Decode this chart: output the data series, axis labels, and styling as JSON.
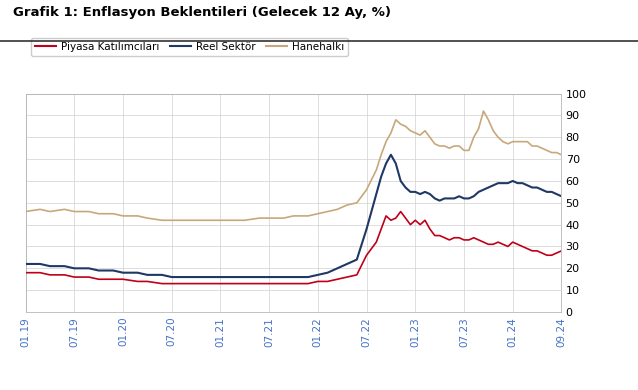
{
  "title": "Grafik 1: Enflasyon Beklentileri (Gelecek 12 Ay, %)",
  "legend_labels": [
    "Piyasa Katılımcıları",
    "Reel Sektör",
    "Hanehalkı"
  ],
  "line_colors": [
    "#c0001a",
    "#1f3864",
    "#c8a87a"
  ],
  "ylim": [
    0,
    100
  ],
  "yticks": [
    0,
    10,
    20,
    30,
    40,
    50,
    60,
    70,
    80,
    90,
    100
  ],
  "xtick_labels": [
    "01.19",
    "07.19",
    "01.20",
    "07.20",
    "01.21",
    "07.21",
    "01.22",
    "07.22",
    "01.23",
    "07.23",
    "01.24",
    "09.24"
  ],
  "piyasa_x": [
    0,
    0.3,
    0.5,
    0.8,
    1,
    1.3,
    1.5,
    1.8,
    2,
    2.3,
    2.5,
    2.8,
    3,
    3.3,
    3.5,
    3.8,
    4,
    4.3,
    4.5,
    4.8,
    5,
    5.3,
    5.5,
    5.8,
    6,
    6.2,
    6.4,
    6.6,
    6.8,
    7,
    7.2,
    7.3,
    7.4,
    7.5,
    7.6,
    7.7,
    7.8,
    7.9,
    8,
    8.1,
    8.2,
    8.3,
    8.4,
    8.5,
    8.6,
    8.7,
    8.8,
    8.9,
    9,
    9.1,
    9.2,
    9.3,
    9.4,
    9.5,
    9.6,
    9.7,
    9.8,
    9.9,
    10,
    10.1,
    10.2,
    10.3,
    10.4,
    10.5,
    10.6,
    10.7,
    10.8,
    10.9,
    11
  ],
  "piyasa_y": [
    18,
    18,
    17,
    17,
    16,
    16,
    15,
    15,
    15,
    14,
    14,
    13,
    13,
    13,
    13,
    13,
    13,
    13,
    13,
    13,
    13,
    13,
    13,
    13,
    14,
    14,
    15,
    16,
    17,
    26,
    32,
    38,
    44,
    42,
    43,
    46,
    43,
    40,
    42,
    40,
    42,
    38,
    35,
    35,
    34,
    33,
    34,
    34,
    33,
    33,
    34,
    33,
    32,
    31,
    31,
    32,
    31,
    30,
    32,
    31,
    30,
    29,
    28,
    28,
    27,
    26,
    26,
    27,
    28
  ],
  "reel_x": [
    0,
    0.3,
    0.5,
    0.8,
    1,
    1.3,
    1.5,
    1.8,
    2,
    2.3,
    2.5,
    2.8,
    3,
    3.3,
    3.5,
    3.8,
    4,
    4.3,
    4.5,
    4.8,
    5,
    5.3,
    5.5,
    5.8,
    6,
    6.2,
    6.4,
    6.6,
    6.8,
    7,
    7.2,
    7.3,
    7.4,
    7.5,
    7.6,
    7.7,
    7.8,
    7.9,
    8,
    8.1,
    8.2,
    8.3,
    8.4,
    8.5,
    8.6,
    8.7,
    8.8,
    8.9,
    9,
    9.1,
    9.2,
    9.3,
    9.4,
    9.5,
    9.6,
    9.7,
    9.8,
    9.9,
    10,
    10.1,
    10.2,
    10.3,
    10.4,
    10.5,
    10.6,
    10.7,
    10.8,
    10.9,
    11
  ],
  "reel_y": [
    22,
    22,
    21,
    21,
    20,
    20,
    19,
    19,
    18,
    18,
    17,
    17,
    16,
    16,
    16,
    16,
    16,
    16,
    16,
    16,
    16,
    16,
    16,
    16,
    17,
    18,
    20,
    22,
    24,
    38,
    54,
    62,
    68,
    72,
    68,
    60,
    57,
    55,
    55,
    54,
    55,
    54,
    52,
    51,
    52,
    52,
    52,
    53,
    52,
    52,
    53,
    55,
    56,
    57,
    58,
    59,
    59,
    59,
    60,
    59,
    59,
    58,
    57,
    57,
    56,
    55,
    55,
    54,
    53
  ],
  "hane_x": [
    0,
    0.3,
    0.5,
    0.8,
    1,
    1.3,
    1.5,
    1.8,
    2,
    2.3,
    2.5,
    2.8,
    3,
    3.3,
    3.5,
    3.8,
    4,
    4.3,
    4.5,
    4.8,
    5,
    5.3,
    5.5,
    5.8,
    6,
    6.2,
    6.4,
    6.6,
    6.8,
    7,
    7.2,
    7.3,
    7.4,
    7.5,
    7.6,
    7.7,
    7.8,
    7.9,
    8,
    8.1,
    8.2,
    8.3,
    8.4,
    8.5,
    8.6,
    8.7,
    8.8,
    8.9,
    9,
    9.1,
    9.2,
    9.3,
    9.4,
    9.5,
    9.6,
    9.7,
    9.8,
    9.9,
    10,
    10.1,
    10.2,
    10.3,
    10.4,
    10.5,
    10.6,
    10.7,
    10.8,
    10.9,
    11
  ],
  "hane_y": [
    46,
    47,
    46,
    47,
    46,
    46,
    45,
    45,
    44,
    44,
    43,
    42,
    42,
    42,
    42,
    42,
    42,
    42,
    42,
    43,
    43,
    43,
    44,
    44,
    45,
    46,
    47,
    49,
    50,
    56,
    65,
    72,
    78,
    82,
    88,
    86,
    85,
    83,
    82,
    81,
    83,
    80,
    77,
    76,
    76,
    75,
    76,
    76,
    74,
    74,
    80,
    84,
    92,
    88,
    83,
    80,
    78,
    77,
    78,
    78,
    78,
    78,
    76,
    76,
    75,
    74,
    73,
    73,
    72
  ]
}
